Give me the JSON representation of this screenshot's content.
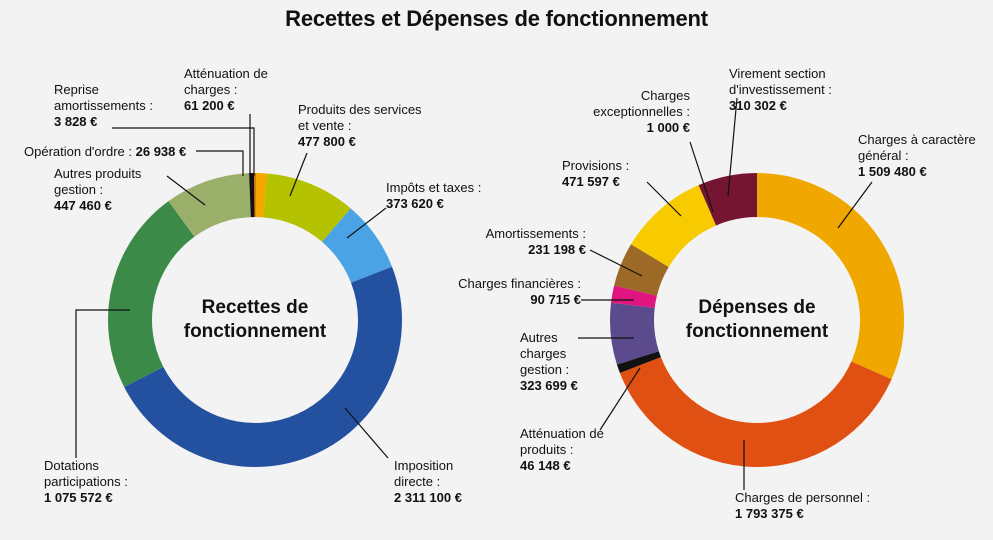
{
  "title": "Recettes et Dépenses de fonctionnement",
  "chart_data": [
    {
      "type": "donut",
      "center_label": [
        "Recettes de",
        "fonctionnement"
      ],
      "slices": [
        {
          "name": "Atténuation de charges :",
          "value": 61200,
          "value_label": "61 200 €",
          "color": "#f6a800"
        },
        {
          "name": "Produits des services et vente :",
          "value": 477800,
          "value_label": "477 800 €",
          "color": "#b5c200"
        },
        {
          "name": "Impôts et taxes :",
          "value": 373620,
          "value_label": "373 620 €",
          "color": "#4aa3e4"
        },
        {
          "name": "Imposition directe :",
          "value": 2311100,
          "value_label": "2 311 100 €",
          "color": "#23509f"
        },
        {
          "name": "Dotations participations :",
          "value": 1075572,
          "value_label": "1 075 572 €",
          "color": "#3c8a48"
        },
        {
          "name": "Autres produits gestion :",
          "value": 447460,
          "value_label": "447 460 €",
          "color": "#9ab06a"
        },
        {
          "name": "Opération d'ordre :",
          "value": 26938,
          "value_label": "26 938 €",
          "color": "#111111"
        },
        {
          "name": "Reprise amortissements :",
          "value": 3828,
          "value_label": "3 828 €",
          "color": "#e07a00"
        }
      ]
    },
    {
      "type": "donut",
      "center_label": [
        "Dépenses de",
        "fonctionnement"
      ],
      "slices": [
        {
          "name": "Charges à caractère général :",
          "value": 1509480,
          "value_label": "1 509 480 €",
          "color": "#f0a700"
        },
        {
          "name": "Charges de personnel :",
          "value": 1793375,
          "value_label": "1 793 375 €",
          "color": "#e05012"
        },
        {
          "name": "Atténuation de produits :",
          "value": 46148,
          "value_label": "46 148 €",
          "color": "#111111"
        },
        {
          "name": "Autres charges gestion :",
          "value": 323699,
          "value_label": "323 699 €",
          "color": "#5b4a8c"
        },
        {
          "name": "Charges financières :",
          "value": 90715,
          "value_label": "90 715 €",
          "color": "#e0157f"
        },
        {
          "name": "Amortissements :",
          "value": 231198,
          "value_label": "231 198 €",
          "color": "#9c6a26"
        },
        {
          "name": "Provisions :",
          "value": 471597,
          "value_label": "471 597 €",
          "color": "#f7cb00"
        },
        {
          "name": "Charges exceptionnelles :",
          "value": 1000,
          "value_label": "1 000 €",
          "color": "#c9a400"
        },
        {
          "name": "Virement section d'investissement :",
          "value": 310302,
          "value_label": "310 302 €",
          "color": "#751532"
        }
      ]
    }
  ]
}
